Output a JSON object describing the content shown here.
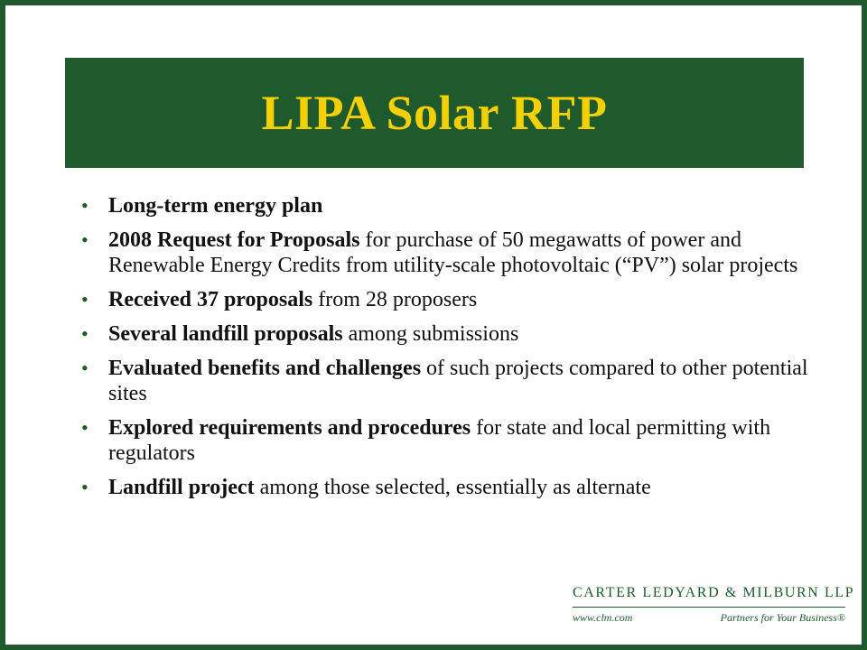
{
  "title": "LIPA Solar RFP",
  "bullets": [
    {
      "bold": "Long-term energy plan",
      "rest": ""
    },
    {
      "bold": "2008 Request for Proposals",
      "rest": " for purchase of 50 megawatts of power and Renewable Energy Credits from utility-scale photovoltaic (“PV”) solar projects"
    },
    {
      "bold": "Received 37 proposals",
      "rest": " from 28 proposers"
    },
    {
      "bold": "Several landfill proposals",
      "rest": " among submissions"
    },
    {
      "bold": "Evaluated benefits and challenges",
      "rest": " of such projects compared to other potential sites"
    },
    {
      "bold": "Explored requirements and procedures",
      "rest": " for state and local permitting with regulators"
    },
    {
      "bold": "Landfill project",
      "rest": " among those selected, essentially as alternate"
    }
  ],
  "footer": {
    "firm_name": "Carter Ledyard & Milburn LLP",
    "website": "www.clm.com",
    "tagline": "Partners for Your Business®"
  },
  "colors": {
    "green": "#1e5a2c",
    "title_yellow": "#f5d000"
  }
}
